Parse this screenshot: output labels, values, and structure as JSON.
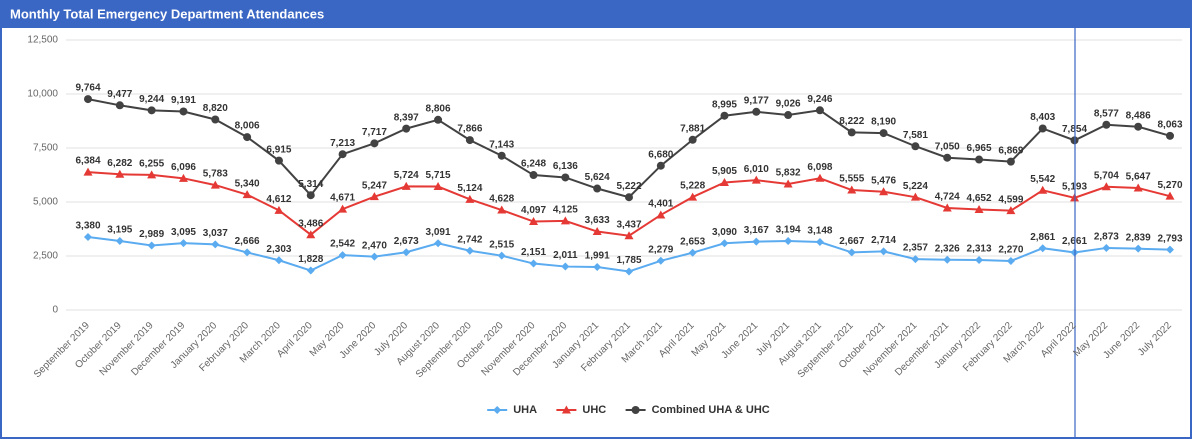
{
  "chart_data": {
    "type": "line",
    "title": "Monthly Total Emergency Department Attendances",
    "categories": [
      "September 2019",
      "October 2019",
      "November 2019",
      "December 2019",
      "January 2020",
      "February 2020",
      "March 2020",
      "April 2020",
      "May 2020",
      "June 2020",
      "July 2020",
      "August 2020",
      "September 2020",
      "October 2020",
      "November 2020",
      "December 2020",
      "January 2021",
      "February 2021",
      "March 2021",
      "April 2021",
      "May 2021",
      "June 2021",
      "July 2021",
      "August 2021",
      "September 2021",
      "October 2021",
      "November 2021",
      "December 2021",
      "January 2022",
      "February 2022",
      "March 2022",
      "April 2022",
      "May 2022",
      "June 2022",
      "July 2022"
    ],
    "series": [
      {
        "name": "UHA",
        "color": "#5aabf0",
        "marker": "diamond",
        "values": [
          3380,
          3195,
          2989,
          3095,
          3037,
          2666,
          2303,
          1828,
          2542,
          2470,
          2673,
          3091,
          2742,
          2515,
          2151,
          2011,
          1991,
          1785,
          2279,
          2653,
          3090,
          3167,
          3194,
          3148,
          2667,
          2714,
          2357,
          2326,
          2313,
          2270,
          2861,
          2661,
          2873,
          2839,
          2793
        ],
        "value_labels": [
          "3,380",
          "3,195",
          "2,989",
          "3,095",
          "3,037",
          "2,666",
          "2,303",
          "1,828",
          "2,542",
          "2,470",
          "2,673",
          "3,091",
          "2,742",
          "2,515",
          "2,151",
          "2,011",
          "1,991",
          "1,785",
          "2,279",
          "2,653",
          "3,090",
          "3,167",
          "3,194",
          "3,148",
          "2,667",
          "2,714",
          "2,357",
          "2,326",
          "2,313",
          "2,270",
          "2,861",
          "2,661",
          "2,873",
          "2,839",
          "2,793"
        ]
      },
      {
        "name": "UHC",
        "color": "#e53935",
        "marker": "triangle",
        "values": [
          6384,
          6282,
          6255,
          6096,
          5783,
          5340,
          4612,
          3486,
          4671,
          5247,
          5724,
          5715,
          5124,
          4628,
          4097,
          4125,
          3633,
          3437,
          4401,
          5228,
          5905,
          6010,
          5832,
          6098,
          5555,
          5476,
          5224,
          4724,
          4652,
          4599,
          5542,
          5193,
          5704,
          5647,
          5270
        ],
        "value_labels": [
          "6,384",
          "6,282",
          "6,255",
          "6,096",
          "5,783",
          "5,340",
          "4,612",
          "3,486",
          "4,671",
          "5,247",
          "5,724",
          "5,715",
          "5,124",
          "4,628",
          "4,097",
          "4,125",
          "3,633",
          "3,437",
          "4,401",
          "5,228",
          "5,905",
          "6,010",
          "5,832",
          "6,098",
          "5,555",
          "5,476",
          "5,224",
          "4,724",
          "4,652",
          "4,599",
          "5,542",
          "5,193",
          "5,704",
          "5,647",
          "5,270"
        ]
      },
      {
        "name": "Combined UHA & UHC",
        "color": "#424242",
        "marker": "circle",
        "values": [
          9764,
          9477,
          9244,
          9191,
          8820,
          8006,
          6915,
          5314,
          7213,
          7717,
          8397,
          8806,
          7866,
          7143,
          6248,
          6136,
          5624,
          5222,
          6680,
          7881,
          8995,
          9177,
          9026,
          9246,
          8222,
          8190,
          7581,
          7050,
          6965,
          6869,
          8403,
          7854,
          8577,
          8486,
          8063
        ],
        "value_labels": [
          "9,764",
          "9,477",
          "9,244",
          "9,191",
          "8,820",
          "8,006",
          "6,915",
          "5,314",
          "7,213",
          "7,717",
          "8,397",
          "8,806",
          "7,866",
          "7,143",
          "6,248",
          "6,136",
          "5,624",
          "5,222",
          "6,680",
          "7,881",
          "8,995",
          "9,177",
          "9,026",
          "9,246",
          "8,222",
          "8,190",
          "7,581",
          "7,050",
          "6,965",
          "6,869",
          "8,403",
          "7,854",
          "8,577",
          "8,486",
          "8,063"
        ]
      }
    ],
    "ylim": [
      0,
      12500
    ],
    "yticks": [
      0,
      {
        "value": 2500,
        "label": "2,500"
      },
      {
        "value": 5000,
        "label": "5,000"
      },
      {
        "value": 7500,
        "label": "7,500"
      },
      {
        "value": 10000,
        "label": "10,000"
      },
      {
        "value": 12500,
        "label": "12,500"
      }
    ],
    "grid": true,
    "legend": "bottom"
  }
}
